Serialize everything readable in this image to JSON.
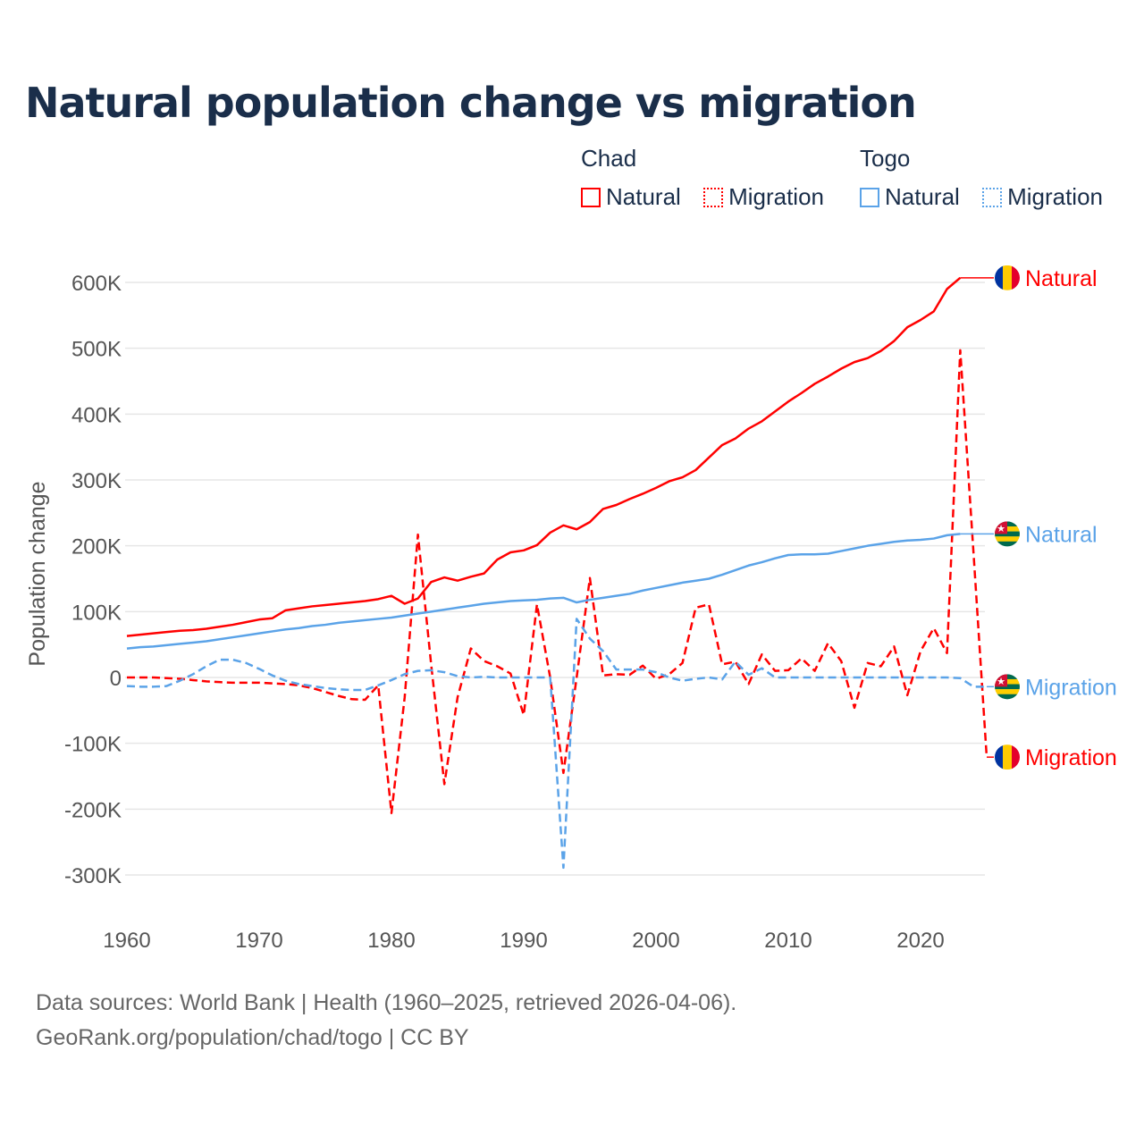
{
  "title": "Natural population change vs migration",
  "legend": {
    "groups": [
      {
        "name": "Chad",
        "items": [
          "Natural",
          "Migration"
        ],
        "color": "#ff0000"
      },
      {
        "name": "Togo",
        "items": [
          "Natural",
          "Migration"
        ],
        "color": "#5ba3e8"
      }
    ]
  },
  "footer": {
    "line1": "Data sources: World Bank | Health (1960–2025, retrieved 2026-04-06).",
    "line2": "GeoRank.org/population/chad/togo | CC BY"
  },
  "chart_data": {
    "type": "line",
    "title": "Natural population change vs migration",
    "xlabel": "",
    "ylabel": "Population change",
    "xlim": [
      1960,
      2025
    ],
    "ylim": [
      -300000,
      600000
    ],
    "xticks": [
      "1960",
      "1970",
      "1980",
      "1990",
      "2000",
      "2010",
      "2020"
    ],
    "yticks": [
      "600K",
      "500K",
      "400K",
      "300K",
      "200K",
      "100K",
      "0",
      "-100K",
      "-200K",
      "-300K"
    ],
    "ytick_values": [
      600,
      500,
      400,
      300,
      200,
      100,
      0,
      -100,
      -200,
      -300
    ],
    "units": "thousands",
    "grid": true,
    "start_year": 1960,
    "series": [
      {
        "name": "Chad Natural",
        "label": "Natural",
        "country": "Chad",
        "color": "#ff0000",
        "dashed": false,
        "values": [
          63,
          65,
          67,
          69,
          71,
          72,
          74,
          77,
          80,
          84,
          88,
          90,
          102,
          105,
          108,
          110,
          112,
          114,
          116,
          119,
          124,
          112,
          120,
          145,
          152,
          147,
          153,
          158,
          179,
          190,
          193,
          201,
          220,
          231,
          225,
          236,
          256,
          262,
          271,
          279,
          288,
          298,
          304,
          315,
          334,
          353,
          363,
          378,
          389,
          404,
          419,
          432,
          446,
          457,
          469,
          479,
          485,
          496,
          511,
          532,
          543,
          556,
          590,
          607
        ]
      },
      {
        "name": "Chad Migration",
        "label": "Migration",
        "country": "Chad",
        "color": "#ff0000",
        "dashed": true,
        "values": [
          0,
          0,
          0,
          -1,
          -2,
          -4,
          -6,
          -7,
          -8,
          -8,
          -8,
          -9,
          -10,
          -12,
          -16,
          -22,
          -28,
          -33,
          -34,
          -12,
          -206,
          -30,
          217,
          20,
          -162,
          -30,
          44,
          25,
          17,
          6,
          -57,
          111,
          0,
          -145,
          0,
          151,
          3,
          5,
          4,
          18,
          -2,
          5,
          22,
          106,
          111,
          20,
          24,
          -10,
          35,
          10,
          11,
          29,
          10,
          52,
          25,
          -46,
          22,
          17,
          47,
          -27,
          40,
          75,
          37,
          497,
          190,
          -121
        ]
      },
      {
        "name": "Togo Natural",
        "label": "Natural",
        "country": "Togo",
        "color": "#5ba3e8",
        "dashed": false,
        "values": [
          44,
          46,
          47,
          49,
          51,
          53,
          55,
          58,
          61,
          64,
          67,
          70,
          73,
          75,
          78,
          80,
          83,
          85,
          87,
          89,
          91,
          94,
          97,
          100,
          103,
          106,
          109,
          112,
          114,
          116,
          117,
          118,
          120,
          121,
          114,
          118,
          121,
          124,
          127,
          132,
          136,
          140,
          144,
          147,
          150,
          156,
          163,
          170,
          175,
          181,
          186,
          187,
          187,
          188,
          192,
          196,
          200,
          203,
          206,
          208,
          209,
          211,
          216,
          218
        ]
      },
      {
        "name": "Togo Migration",
        "label": "Migration",
        "country": "Togo",
        "color": "#5ba3e8",
        "dashed": true,
        "values": [
          -13,
          -14,
          -14,
          -13,
          -5,
          5,
          17,
          27,
          27,
          22,
          13,
          3,
          -5,
          -10,
          -13,
          -16,
          -18,
          -19,
          -19,
          -12,
          -4,
          5,
          10,
          11,
          8,
          2,
          0,
          1,
          0,
          0,
          0,
          0,
          0,
          -289,
          89,
          59,
          40,
          12,
          12,
          12,
          8,
          0,
          -5,
          -2,
          0,
          -3,
          24,
          4,
          14,
          0,
          0,
          0,
          0,
          0,
          0,
          0,
          0,
          0,
          0,
          0,
          0,
          0,
          0,
          -1,
          -14,
          -14
        ]
      }
    ]
  }
}
